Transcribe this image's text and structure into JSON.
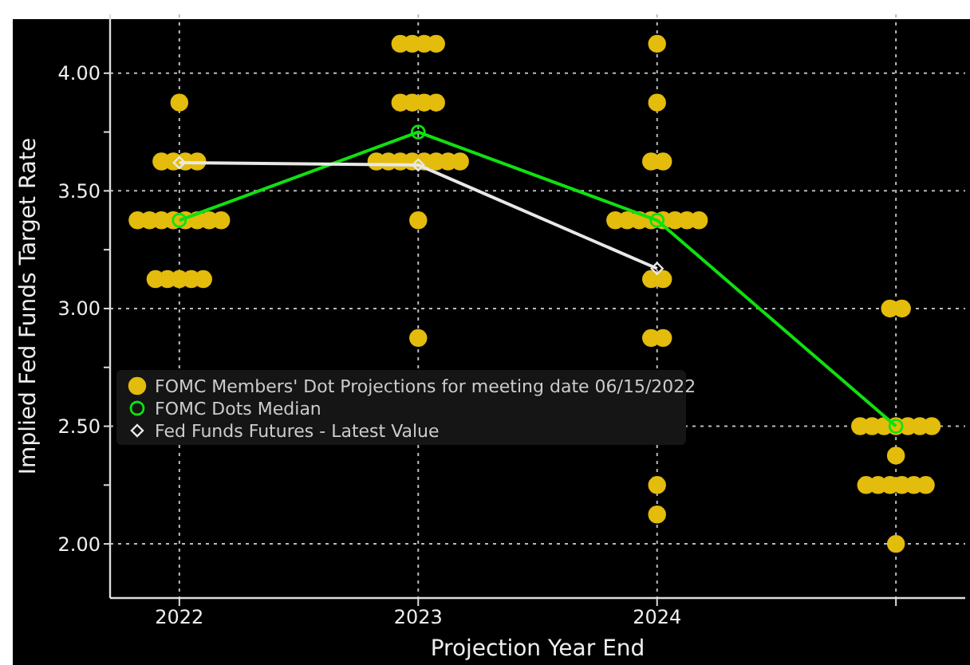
{
  "chart_data": {
    "type": "scatter",
    "xlabel": "Projection Year End",
    "ylabel": "Implied Fed Funds Target Rate",
    "x": [
      2022,
      2023,
      2024,
      2025
    ],
    "xlim": [
      2021.71,
      2025.29
    ],
    "xticks": [
      2022,
      2023,
      2024,
      {
        "value": 2025,
        "label": null
      }
    ],
    "ylim": [
      1.77,
      4.25
    ],
    "yticks": [
      {
        "value": 2.0,
        "label": "2.00"
      },
      {
        "value": 2.25,
        "label": null
      },
      {
        "value": 2.5,
        "label": "2.50"
      },
      {
        "value": 2.75,
        "label": null
      },
      {
        "value": 3.0,
        "label": "3.00"
      },
      {
        "value": 3.25,
        "label": null
      },
      {
        "value": 3.5,
        "label": "3.50"
      },
      {
        "value": 3.75,
        "label": null
      },
      {
        "value": 4.0,
        "label": "4.00"
      }
    ],
    "grid": true,
    "legend": "bottom left",
    "series": [
      {
        "marker": "circle",
        "name": "FOMC Members' Dot Projections for meeting date 06/15/2022",
        "color": "#e3bc0c",
        "x": [
          2022,
          2021.925,
          2021.975,
          2022.025,
          2022.075,
          2021.825,
          2021.875,
          2021.925,
          2021.975,
          2022.025,
          2022.075,
          2022.125,
          2022.175,
          2021.9,
          2021.95,
          2022,
          2022.05,
          2022.1,
          2022.925,
          2022.975,
          2023.025,
          2023.075,
          2022.925,
          2022.975,
          2023.025,
          2023.075,
          2022.825,
          2022.875,
          2022.925,
          2022.975,
          2023.025,
          2023.075,
          2023.125,
          2023.175,
          2023,
          2023,
          2024,
          2024,
          2023.975,
          2024.025,
          2023.825,
          2023.875,
          2023.925,
          2023.975,
          2024.025,
          2024.075,
          2024.125,
          2024.175,
          2023.975,
          2024.025,
          2023.975,
          2024.025,
          2024,
          2024,
          2024.975,
          2025.025,
          2024.85,
          2024.9,
          2024.95,
          2025,
          2025.05,
          2025.1,
          2025.15,
          2025,
          2024.875,
          2024.925,
          2024.975,
          2025.025,
          2025.075,
          2025.125,
          2025
        ],
        "values": [
          3.875,
          3.625,
          3.625,
          3.625,
          3.625,
          3.375,
          3.375,
          3.375,
          3.375,
          3.375,
          3.375,
          3.375,
          3.375,
          3.125,
          3.125,
          3.125,
          3.125,
          3.125,
          4.125,
          4.125,
          4.125,
          4.125,
          3.875,
          3.875,
          3.875,
          3.875,
          3.625,
          3.625,
          3.625,
          3.625,
          3.625,
          3.625,
          3.625,
          3.625,
          3.375,
          2.875,
          4.125,
          3.875,
          3.625,
          3.625,
          3.375,
          3.375,
          3.375,
          3.375,
          3.375,
          3.375,
          3.375,
          3.375,
          3.125,
          3.125,
          2.875,
          2.875,
          2.25,
          2.125,
          3.0,
          3.0,
          2.5,
          2.5,
          2.5,
          2.5,
          2.5,
          2.5,
          2.5,
          2.375,
          2.25,
          2.25,
          2.25,
          2.25,
          2.25,
          2.25,
          2.0
        ]
      },
      {
        "type": "line",
        "marker": "circle",
        "name": "FOMC Dots Median",
        "color": "#10e010",
        "values": [
          3.375,
          3.75,
          3.375,
          2.5
        ]
      },
      {
        "type": "line",
        "marker": "diamond",
        "name": "Fed Funds Futures - Latest Value",
        "color": "#e8e8e8",
        "values": [
          3.62,
          3.61,
          3.17,
          null
        ]
      }
    ]
  }
}
